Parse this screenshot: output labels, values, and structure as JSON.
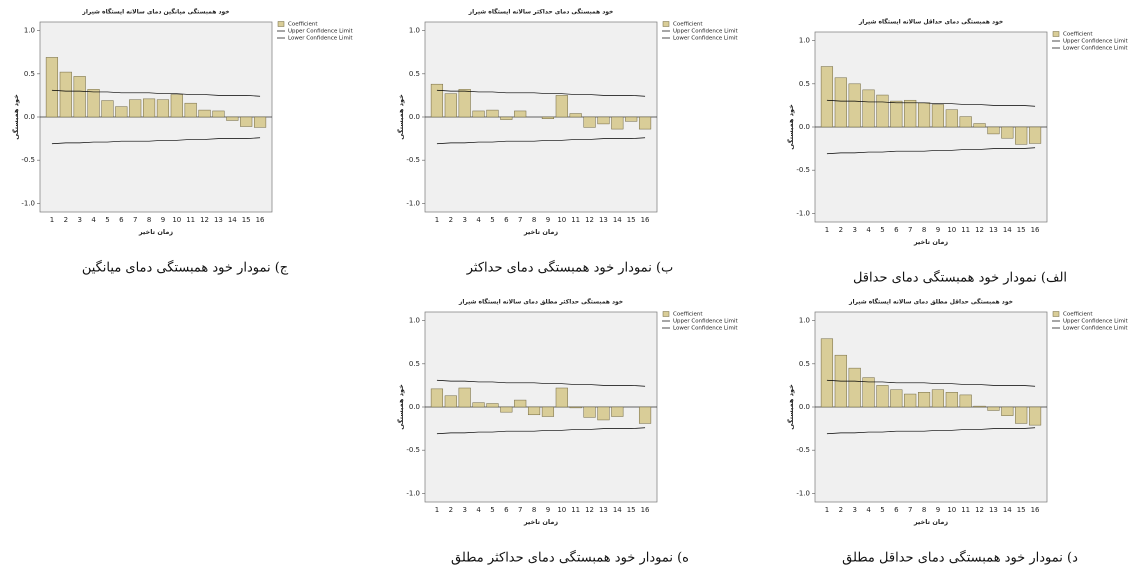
{
  "chart_data": [
    {
      "type": "bar",
      "title": "خود همبستگی میانگین دمای سالانه ایستگاه شیراز",
      "caption": "ج) نمودار خود همبستگی دمای میانگین",
      "x_label": "زمان تاخیر",
      "y_label": "خود همبستگی",
      "categories": [
        "1",
        "2",
        "3",
        "4",
        "5",
        "6",
        "7",
        "8",
        "9",
        "10",
        "11",
        "12",
        "13",
        "14",
        "15",
        "16"
      ],
      "series": [
        {
          "name": "Coefficient",
          "type": "bar",
          "color": "#d9cd98",
          "values": [
            0.69,
            0.52,
            0.47,
            0.32,
            0.19,
            0.12,
            0.2,
            0.21,
            0.2,
            0.26,
            0.16,
            0.08,
            0.07,
            -0.04,
            -0.11,
            -0.12
          ]
        },
        {
          "name": "Upper Confidence Limit",
          "type": "line",
          "color": "#000000",
          "values": [
            0.31,
            0.3,
            0.3,
            0.29,
            0.29,
            0.28,
            0.28,
            0.28,
            0.27,
            0.27,
            0.26,
            0.26,
            0.25,
            0.25,
            0.25,
            0.24
          ]
        },
        {
          "name": "Lower Confidence Limit",
          "type": "line",
          "color": "#000000",
          "values": [
            -0.31,
            -0.3,
            -0.3,
            -0.29,
            -0.29,
            -0.28,
            -0.28,
            -0.28,
            -0.27,
            -0.27,
            -0.26,
            -0.26,
            -0.25,
            -0.25,
            -0.25,
            -0.24
          ]
        }
      ],
      "ylim": [
        -1.1,
        1.1
      ],
      "yticks": [
        {
          "value": -1,
          "label": "-1.0"
        },
        {
          "value": -0.5,
          "label": "-0.5"
        },
        {
          "value": 0,
          "label": "0.0"
        },
        {
          "value": 0.5,
          "label": "0.5"
        },
        {
          "value": 1,
          "label": "1.0"
        }
      ]
    },
    {
      "type": "bar",
      "title": "خود همبستگی دمای حداکثر سالانه ایستگاه شیراز",
      "caption": "ب) نمودار خود همبستگی دمای حداکثر",
      "x_label": "زمان تاخیر",
      "y_label": "خود همبستگی",
      "categories": [
        "1",
        "2",
        "3",
        "4",
        "5",
        "6",
        "7",
        "8",
        "9",
        "10",
        "11",
        "12",
        "13",
        "14",
        "15",
        "16"
      ],
      "series": [
        {
          "name": "Coefficient",
          "type": "bar",
          "color": "#d9cd98",
          "values": [
            0.38,
            0.27,
            0.32,
            0.07,
            0.08,
            -0.03,
            0.07,
            0.0,
            -0.02,
            0.25,
            0.04,
            -0.12,
            -0.08,
            -0.14,
            -0.05,
            -0.14
          ]
        },
        {
          "name": "Upper Confidence Limit",
          "type": "line",
          "color": "#000000",
          "values": [
            0.31,
            0.3,
            0.3,
            0.29,
            0.29,
            0.28,
            0.28,
            0.28,
            0.27,
            0.27,
            0.26,
            0.26,
            0.25,
            0.25,
            0.25,
            0.24
          ]
        },
        {
          "name": "Lower Confidence Limit",
          "type": "line",
          "color": "#000000",
          "values": [
            -0.31,
            -0.3,
            -0.3,
            -0.29,
            -0.29,
            -0.28,
            -0.28,
            -0.28,
            -0.27,
            -0.27,
            -0.26,
            -0.26,
            -0.25,
            -0.25,
            -0.25,
            -0.24
          ]
        }
      ],
      "ylim": [
        -1.1,
        1.1
      ],
      "yticks": [
        {
          "value": -1,
          "label": "-1.0"
        },
        {
          "value": -0.5,
          "label": "-0.5"
        },
        {
          "value": 0,
          "label": "0.0"
        },
        {
          "value": 0.5,
          "label": "0.5"
        },
        {
          "value": 1,
          "label": "1.0"
        }
      ]
    },
    {
      "type": "bar",
      "title": "خود همبستگی دمای حداقل سالانه ایستگاه شیراز",
      "caption": "الف) نمودار خود همبستگی دمای حداقل",
      "x_label": "زمان تاخیر",
      "y_label": "خود همبستگی",
      "categories": [
        "1",
        "2",
        "3",
        "4",
        "5",
        "6",
        "7",
        "8",
        "9",
        "10",
        "11",
        "12",
        "13",
        "14",
        "15",
        "16"
      ],
      "series": [
        {
          "name": "Coefficient",
          "type": "bar",
          "color": "#d9cd98",
          "values": [
            0.7,
            0.57,
            0.5,
            0.43,
            0.37,
            0.3,
            0.31,
            0.28,
            0.26,
            0.2,
            0.12,
            0.04,
            -0.08,
            -0.13,
            -0.2,
            -0.19
          ]
        },
        {
          "name": "Upper Confidence Limit",
          "type": "line",
          "color": "#000000",
          "values": [
            0.31,
            0.3,
            0.3,
            0.29,
            0.29,
            0.28,
            0.28,
            0.28,
            0.27,
            0.27,
            0.26,
            0.26,
            0.25,
            0.25,
            0.25,
            0.24
          ]
        },
        {
          "name": "Lower Confidence Limit",
          "type": "line",
          "color": "#000000",
          "values": [
            -0.31,
            -0.3,
            -0.3,
            -0.29,
            -0.29,
            -0.28,
            -0.28,
            -0.28,
            -0.27,
            -0.27,
            -0.26,
            -0.26,
            -0.25,
            -0.25,
            -0.25,
            -0.24
          ]
        }
      ],
      "ylim": [
        -1.1,
        1.1
      ],
      "yticks": [
        {
          "value": -1,
          "label": "-1.0"
        },
        {
          "value": -0.5,
          "label": "-0.5"
        },
        {
          "value": 0,
          "label": "0.0"
        },
        {
          "value": 0.5,
          "label": "0.5"
        },
        {
          "value": 1,
          "label": "1.0"
        }
      ]
    },
    {
      "type": "bar",
      "title": "خود همبستگی حداکثر مطلق دمای سالانه ایستگاه شیراز",
      "caption": "ه) نمودار خود همبستگی دمای حداکثر مطلق",
      "x_label": "زمان تاخیر",
      "y_label": "خود همبستگی",
      "categories": [
        "1",
        "2",
        "3",
        "4",
        "5",
        "6",
        "7",
        "8",
        "9",
        "10",
        "11",
        "12",
        "13",
        "14",
        "15",
        "16"
      ],
      "series": [
        {
          "name": "Coefficient",
          "type": "bar",
          "color": "#d9cd98",
          "values": [
            0.21,
            0.13,
            0.22,
            0.05,
            0.04,
            -0.06,
            0.08,
            -0.09,
            -0.11,
            0.22,
            -0.01,
            -0.12,
            -0.15,
            -0.11,
            0.0,
            -0.19
          ]
        },
        {
          "name": "Upper Confidence Limit",
          "type": "line",
          "color": "#000000",
          "values": [
            0.31,
            0.3,
            0.3,
            0.29,
            0.29,
            0.28,
            0.28,
            0.28,
            0.27,
            0.27,
            0.26,
            0.26,
            0.25,
            0.25,
            0.25,
            0.24
          ]
        },
        {
          "name": "Lower Confidence Limit",
          "type": "line",
          "color": "#000000",
          "values": [
            -0.31,
            -0.3,
            -0.3,
            -0.29,
            -0.29,
            -0.28,
            -0.28,
            -0.28,
            -0.27,
            -0.27,
            -0.26,
            -0.26,
            -0.25,
            -0.25,
            -0.25,
            -0.24
          ]
        }
      ],
      "ylim": [
        -1.1,
        1.1
      ],
      "yticks": [
        {
          "value": -1,
          "label": "-1.0"
        },
        {
          "value": -0.5,
          "label": "-0.5"
        },
        {
          "value": 0,
          "label": "0.0"
        },
        {
          "value": 0.5,
          "label": "0.5"
        },
        {
          "value": 1,
          "label": "1.0"
        }
      ]
    },
    {
      "type": "bar",
      "title": "خود همبستگی حداقل مطلق دمای سالانه ایستگاه شیراز",
      "caption": "د) نمودار خود همبستگی دمای حداقل مطلق",
      "x_label": "زمان تاخیر",
      "y_label": "خود همبستگی",
      "categories": [
        "1",
        "2",
        "3",
        "4",
        "5",
        "6",
        "7",
        "8",
        "9",
        "10",
        "11",
        "12",
        "13",
        "14",
        "15",
        "16"
      ],
      "series": [
        {
          "name": "Coefficient",
          "type": "bar",
          "color": "#d9cd98",
          "values": [
            0.79,
            0.6,
            0.45,
            0.34,
            0.25,
            0.2,
            0.15,
            0.17,
            0.2,
            0.17,
            0.14,
            0.01,
            -0.04,
            -0.1,
            -0.19,
            -0.21
          ]
        },
        {
          "name": "Upper Confidence Limit",
          "type": "line",
          "color": "#000000",
          "values": [
            0.31,
            0.3,
            0.3,
            0.29,
            0.29,
            0.28,
            0.28,
            0.28,
            0.27,
            0.27,
            0.26,
            0.26,
            0.25,
            0.25,
            0.25,
            0.24
          ]
        },
        {
          "name": "Lower Confidence Limit",
          "type": "line",
          "color": "#000000",
          "values": [
            -0.31,
            -0.3,
            -0.3,
            -0.29,
            -0.29,
            -0.28,
            -0.28,
            -0.28,
            -0.27,
            -0.27,
            -0.26,
            -0.26,
            -0.25,
            -0.25,
            -0.25,
            -0.24
          ]
        }
      ],
      "ylim": [
        -1.1,
        1.1
      ],
      "yticks": [
        {
          "value": -1,
          "label": "-1.0"
        },
        {
          "value": -0.5,
          "label": "-0.5"
        },
        {
          "value": 0,
          "label": "0.0"
        },
        {
          "value": 0.5,
          "label": "0.5"
        },
        {
          "value": 1,
          "label": "1.0"
        }
      ]
    }
  ]
}
